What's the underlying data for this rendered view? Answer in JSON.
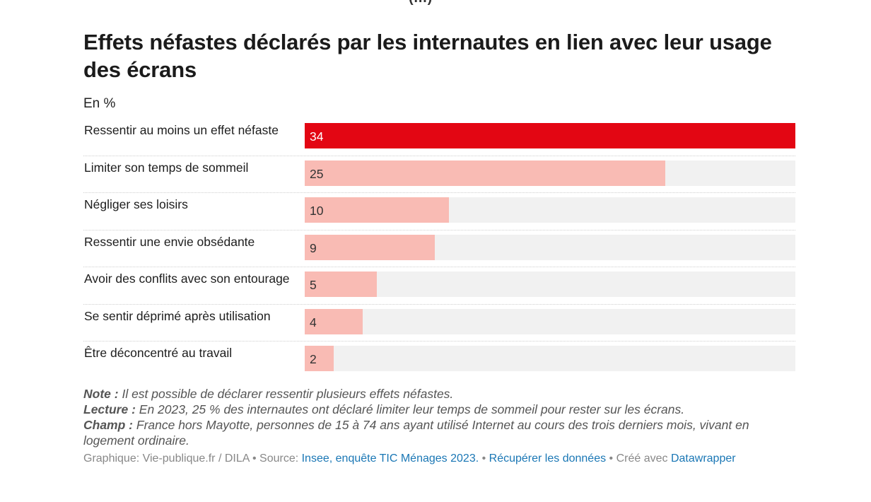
{
  "top_fragment": "(…)",
  "title": "Effets néfastes déclarés par les internautes en lien avec leur usage des écrans",
  "subtitle": "En %",
  "colors": {
    "highlight": "#e30613",
    "bar": "#f9bbb4",
    "track": "#f1f1f1",
    "link": "#1a77b5"
  },
  "chart_data": {
    "type": "bar",
    "orientation": "horizontal",
    "title": "Effets néfastes déclarés par les internautes en lien avec leur usage des écrans",
    "unit": "En %",
    "xlim": [
      0,
      34
    ],
    "categories": [
      "Ressentir au moins un effet néfaste",
      "Limiter son temps de sommeil",
      "Négliger ses loisirs",
      "Ressentir une envie obsédante",
      "Avoir des conflits avec son entourage",
      "Se sentir déprimé après utilisation",
      "Être déconcentré au travail"
    ],
    "values": [
      34,
      25,
      10,
      9,
      5,
      4,
      2
    ],
    "highlighted_index": 0
  },
  "notes": {
    "note_label": "Note :",
    "note_text": "Il est possible de déclarer ressentir plusieurs effets néfastes.",
    "lecture_label": "Lecture :",
    "lecture_text": "En 2023, 25 % des internautes ont déclaré limiter leur temps de sommeil pour rester sur les écrans.",
    "champ_label": "Champ :",
    "champ_text": "France hors Mayotte, personnes de 15 à 74 ans ayant utilisé Internet au cours des trois derniers mois, vivant en logement ordinaire."
  },
  "footer": {
    "graphic": "Graphique: Vie-publique.fr / DILA",
    "sep1": " • ",
    "source_label": "Source: ",
    "source_link": "Insee, enquête TIC Ménages 2023.",
    "sep2": " • ",
    "download_link": "Récupérer les données",
    "sep3": " • ",
    "made_with": "Créé avec ",
    "datawrapper_link": "Datawrapper"
  }
}
